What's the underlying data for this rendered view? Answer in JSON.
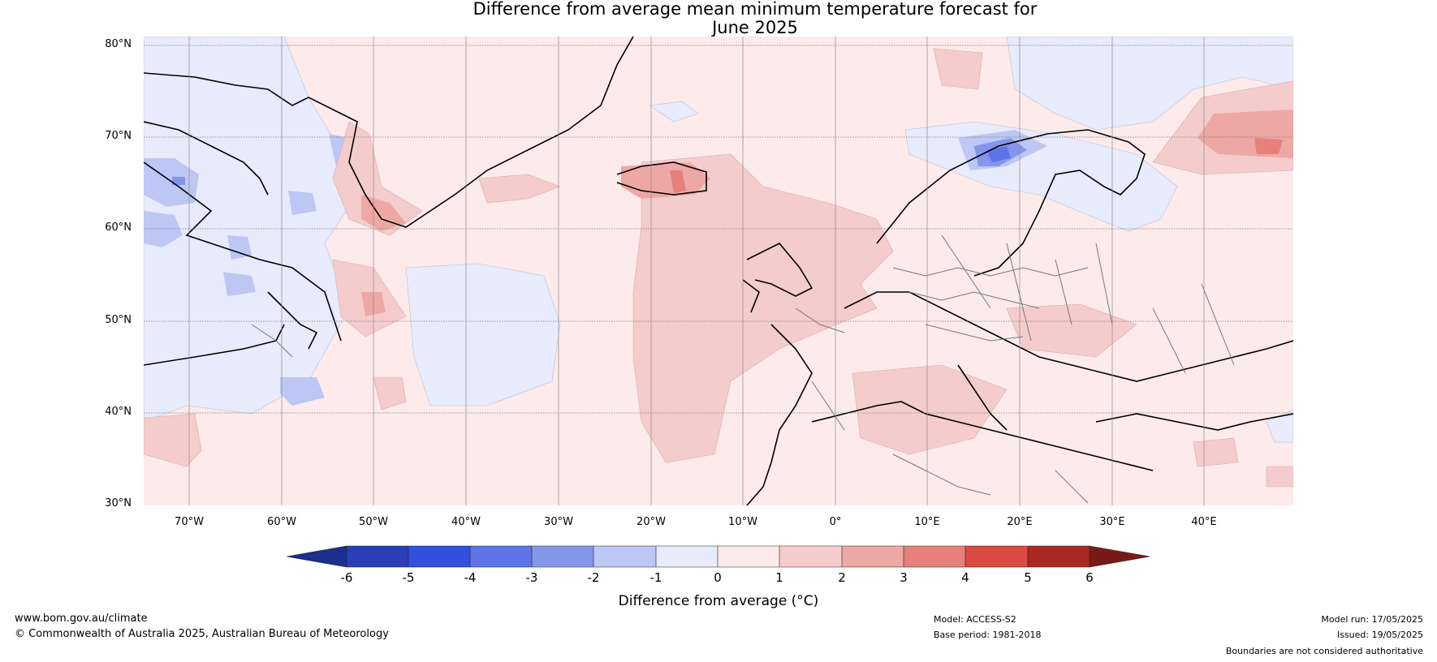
{
  "title": {
    "line1": "Difference from average mean minimum temperature forecast for",
    "line2": "June 2025"
  },
  "latitude_labels": [
    "80°N",
    "70°N",
    "60°N",
    "50°N",
    "40°N",
    "30°N"
  ],
  "longitude_labels": [
    "70°W",
    "60°W",
    "50°W",
    "40°W",
    "30°W",
    "20°W",
    "10°W",
    "0°",
    "10°E",
    "20°E",
    "30°E",
    "40°E"
  ],
  "colorbar": {
    "ticks": [
      "-6",
      "-5",
      "-4",
      "-3",
      "-2",
      "-1",
      "0",
      "1",
      "2",
      "3",
      "4",
      "5",
      "6"
    ],
    "label": "Difference from average (°C)",
    "colors": [
      "#1a2f8f",
      "#2a3fb6",
      "#3251de",
      "#5e74e6",
      "#8396ea",
      "#bcc7f4",
      "#e8ebfb",
      "#fcebea",
      "#f4cccb",
      "#eda8a5",
      "#e5807b",
      "#da4b42",
      "#aa2923",
      "#7a1a18"
    ]
  },
  "footer": {
    "website": "www.bom.gov.au/climate",
    "copyright": "© Commonwealth of Australia 2025, Australian Bureau of Meteorology",
    "model": "Model: ACCESS-S2",
    "base_period": "Base period: 1981-2018",
    "model_run": "Model run: 17/05/2025",
    "issued": "Issued: 19/05/2025",
    "disclaimer": "Boundaries are not considered authoritative"
  }
}
